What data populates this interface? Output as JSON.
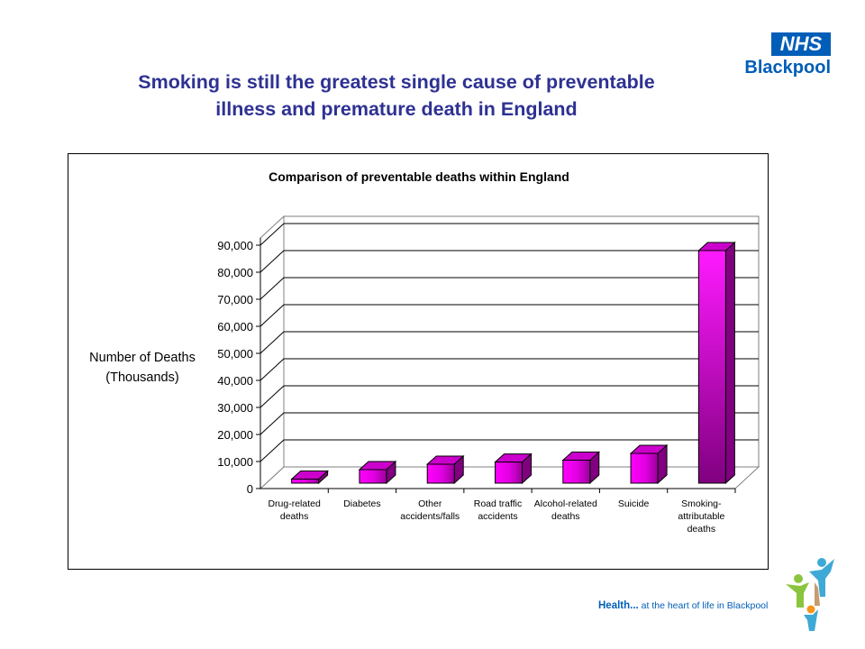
{
  "slide": {
    "title_line1": "Smoking is still the greatest  single cause of preventable",
    "title_line2": "illness and premature death in England",
    "title_color": "#2e3192"
  },
  "logo": {
    "badge": "NHS",
    "org": "Blackpool",
    "color": "#005eb8"
  },
  "footer": {
    "tagline_bold": "Health...",
    "tagline_rest": "at the heart of life in Blackpool",
    "color": "#005eb8"
  },
  "chart_data": {
    "type": "bar",
    "title": "Comparison of preventable deaths within England",
    "ylabel_line1": "Number of Deaths",
    "ylabel_line2": "(Thousands)",
    "xlabel": "",
    "ylim": [
      0,
      90000
    ],
    "yticks": [
      "0",
      "10,000",
      "20,000",
      "30,000",
      "40,000",
      "50,000",
      "60,000",
      "70,000",
      "80,000",
      "90,000"
    ],
    "categories": [
      [
        "Drug-related",
        "deaths"
      ],
      [
        "Diabetes"
      ],
      [
        "Other",
        "accidents/falls"
      ],
      [
        "Road traffic",
        "accidents"
      ],
      [
        "Alcohol-related",
        "deaths"
      ],
      [
        "Suicide"
      ],
      [
        "Smoking-",
        "attributable",
        "deaths"
      ]
    ],
    "values": [
      1500,
      5000,
      7000,
      7800,
      8500,
      11000,
      86000
    ],
    "grid": true,
    "legend": "none",
    "bar_color": "#ff00ff",
    "bar_dark_color": "#800080"
  }
}
